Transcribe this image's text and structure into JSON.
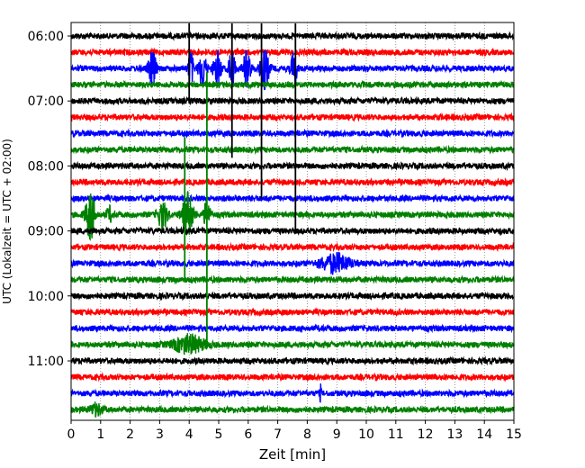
{
  "chart_data": {
    "type": "line",
    "xlabel": "Zeit  [min]",
    "ylabel": "UTC (Lokalzeit = UTC + 02:00)",
    "xlim": [
      0,
      15
    ],
    "x_ticks": [
      0,
      1,
      2,
      3,
      4,
      5,
      6,
      7,
      8,
      9,
      10,
      11,
      12,
      13,
      14,
      15
    ],
    "y_tick_labels": [
      "06:00",
      "07:00",
      "08:00",
      "09:00",
      "10:00",
      "11:00"
    ],
    "grid": "vertical dotted",
    "trace_colors": [
      "#000000",
      "#ff0000",
      "#0000ff",
      "#008000"
    ],
    "trace_start_times": [
      "06:00",
      "06:15",
      "06:30",
      "06:45",
      "07:00",
      "07:15",
      "07:30",
      "07:45",
      "08:00",
      "08:15",
      "08:30",
      "08:45",
      "09:00",
      "09:15",
      "09:30",
      "09:45",
      "10:00",
      "10:15",
      "10:30",
      "10:45",
      "11:00",
      "11:15",
      "11:30",
      "11:45"
    ],
    "events": [
      {
        "trace": 2,
        "x": 2.75,
        "amplitude": 20,
        "width": 0.12
      },
      {
        "trace": 2,
        "x": 4.05,
        "amplitude": 22,
        "width": 0.08
      },
      {
        "trace": 2,
        "x": 4.45,
        "amplitude": 20,
        "width": 0.12
      },
      {
        "trace": 2,
        "x": 4.95,
        "amplitude": 20,
        "width": 0.12
      },
      {
        "trace": 2,
        "x": 5.45,
        "amplitude": 22,
        "width": 0.1
      },
      {
        "trace": 2,
        "x": 5.95,
        "amplitude": 20,
        "width": 0.12
      },
      {
        "trace": 2,
        "x": 6.55,
        "amplitude": 22,
        "width": 0.15
      },
      {
        "trace": 2,
        "x": 7.55,
        "amplitude": 20,
        "width": 0.1
      },
      {
        "trace": 11,
        "x": 0.65,
        "amplitude": 28,
        "width": 0.15
      },
      {
        "trace": 11,
        "x": 1.3,
        "amplitude": 8,
        "width": 0.1
      },
      {
        "trace": 11,
        "x": 3.1,
        "amplitude": 16,
        "width": 0.15
      },
      {
        "trace": 11,
        "x": 3.95,
        "amplitude": 24,
        "width": 0.18
      },
      {
        "trace": 11,
        "x": 4.6,
        "amplitude": 16,
        "width": 0.1
      },
      {
        "trace": 14,
        "x": 8.95,
        "amplitude": 10,
        "width": 0.5
      },
      {
        "trace": 19,
        "x": 4.0,
        "amplitude": 10,
        "width": 0.5
      },
      {
        "trace": 22,
        "x": 8.45,
        "amplitude": 8,
        "width": 0.03
      },
      {
        "trace": 23,
        "x": 0.85,
        "amplitude": 6,
        "width": 0.2
      }
    ],
    "spikes": [
      {
        "trace": 0,
        "x": 6.45,
        "length_traces": 10
      },
      {
        "trace": 0,
        "x": 7.6,
        "length_traces": 12
      },
      {
        "trace": 0,
        "x": 4.0,
        "length_traces": 4
      },
      {
        "trace": 0,
        "x": 5.45,
        "length_traces": 7.5
      },
      {
        "trace": 7,
        "x": 3.85,
        "length_traces": 8
      },
      {
        "trace": 3,
        "x": 4.6,
        "length_traces": 16
      }
    ]
  }
}
